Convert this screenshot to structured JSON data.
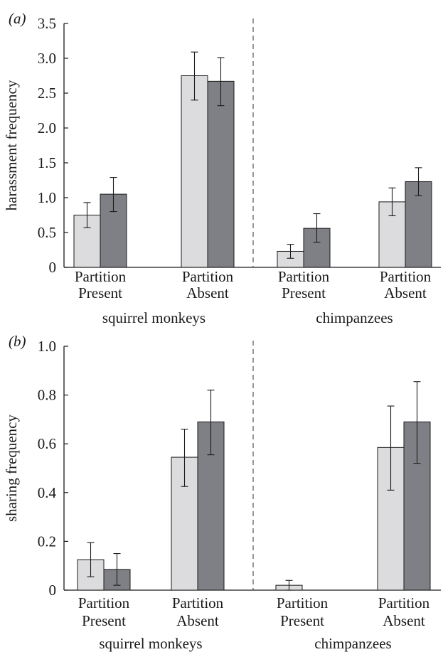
{
  "chart_data": [
    {
      "type": "bar",
      "panel_label": "(a)",
      "ylabel": "harassment frequency",
      "ylim": [
        0,
        3.5
      ],
      "yticks": [
        "0",
        "0.5",
        "1.0",
        "1.5",
        "2.0",
        "2.5",
        "3.0",
        "3.5"
      ],
      "ytick_values": [
        0,
        0.5,
        1.0,
        1.5,
        2.0,
        2.5,
        3.0,
        3.5
      ],
      "groups": [
        {
          "name": "squirrel monkeys",
          "categories": [
            {
              "line1": "Partition",
              "line2": "Present"
            },
            {
              "line1": "Partition",
              "line2": "Absent"
            }
          ]
        },
        {
          "name": "chimpanzees",
          "categories": [
            {
              "line1": "Partition",
              "line2": "Present"
            },
            {
              "line1": "Partition",
              "line2": "Absent"
            }
          ]
        }
      ],
      "series": [
        {
          "color": "#dcdcde",
          "values": [
            0.75,
            2.75,
            0.23,
            0.94
          ],
          "err_low": [
            0.57,
            2.4,
            0.13,
            0.74
          ],
          "err_high": [
            0.93,
            3.09,
            0.33,
            1.14
          ]
        },
        {
          "color": "#7f8085",
          "values": [
            1.05,
            2.67,
            0.56,
            1.23
          ],
          "err_low": [
            0.8,
            2.32,
            0.36,
            1.03
          ],
          "err_high": [
            1.29,
            3.01,
            0.77,
            1.43
          ]
        }
      ],
      "divider": "dashed"
    },
    {
      "type": "bar",
      "panel_label": "(b)",
      "ylabel": "sharing frequency",
      "ylim": [
        0,
        1.0
      ],
      "yticks": [
        "0",
        "0.2",
        "0.4",
        "0.6",
        "0.8",
        "1.0"
      ],
      "ytick_values": [
        0,
        0.2,
        0.4,
        0.6,
        0.8,
        1.0
      ],
      "groups": [
        {
          "name": "squirrel monkeys",
          "categories": [
            {
              "line1": "Partition",
              "line2": "Present"
            },
            {
              "line1": "Partition",
              "line2": "Absent"
            }
          ]
        },
        {
          "name": "chimpanzees",
          "categories": [
            {
              "line1": "Partition",
              "line2": "Present"
            },
            {
              "line1": "Partition",
              "line2": "Absent"
            }
          ]
        }
      ],
      "series": [
        {
          "color": "#dcdcde",
          "values": [
            0.125,
            0.545,
            0.02,
            0.585
          ],
          "err_low": [
            0.055,
            0.425,
            0.0,
            0.41
          ],
          "err_high": [
            0.195,
            0.66,
            0.04,
            0.755
          ]
        },
        {
          "color": "#7f8085",
          "values": [
            0.085,
            0.69,
            0.0,
            0.69
          ],
          "err_low": [
            0.02,
            0.555,
            0.0,
            0.52
          ],
          "err_high": [
            0.15,
            0.82,
            0.0,
            0.855
          ]
        }
      ],
      "divider": "dashed"
    }
  ]
}
